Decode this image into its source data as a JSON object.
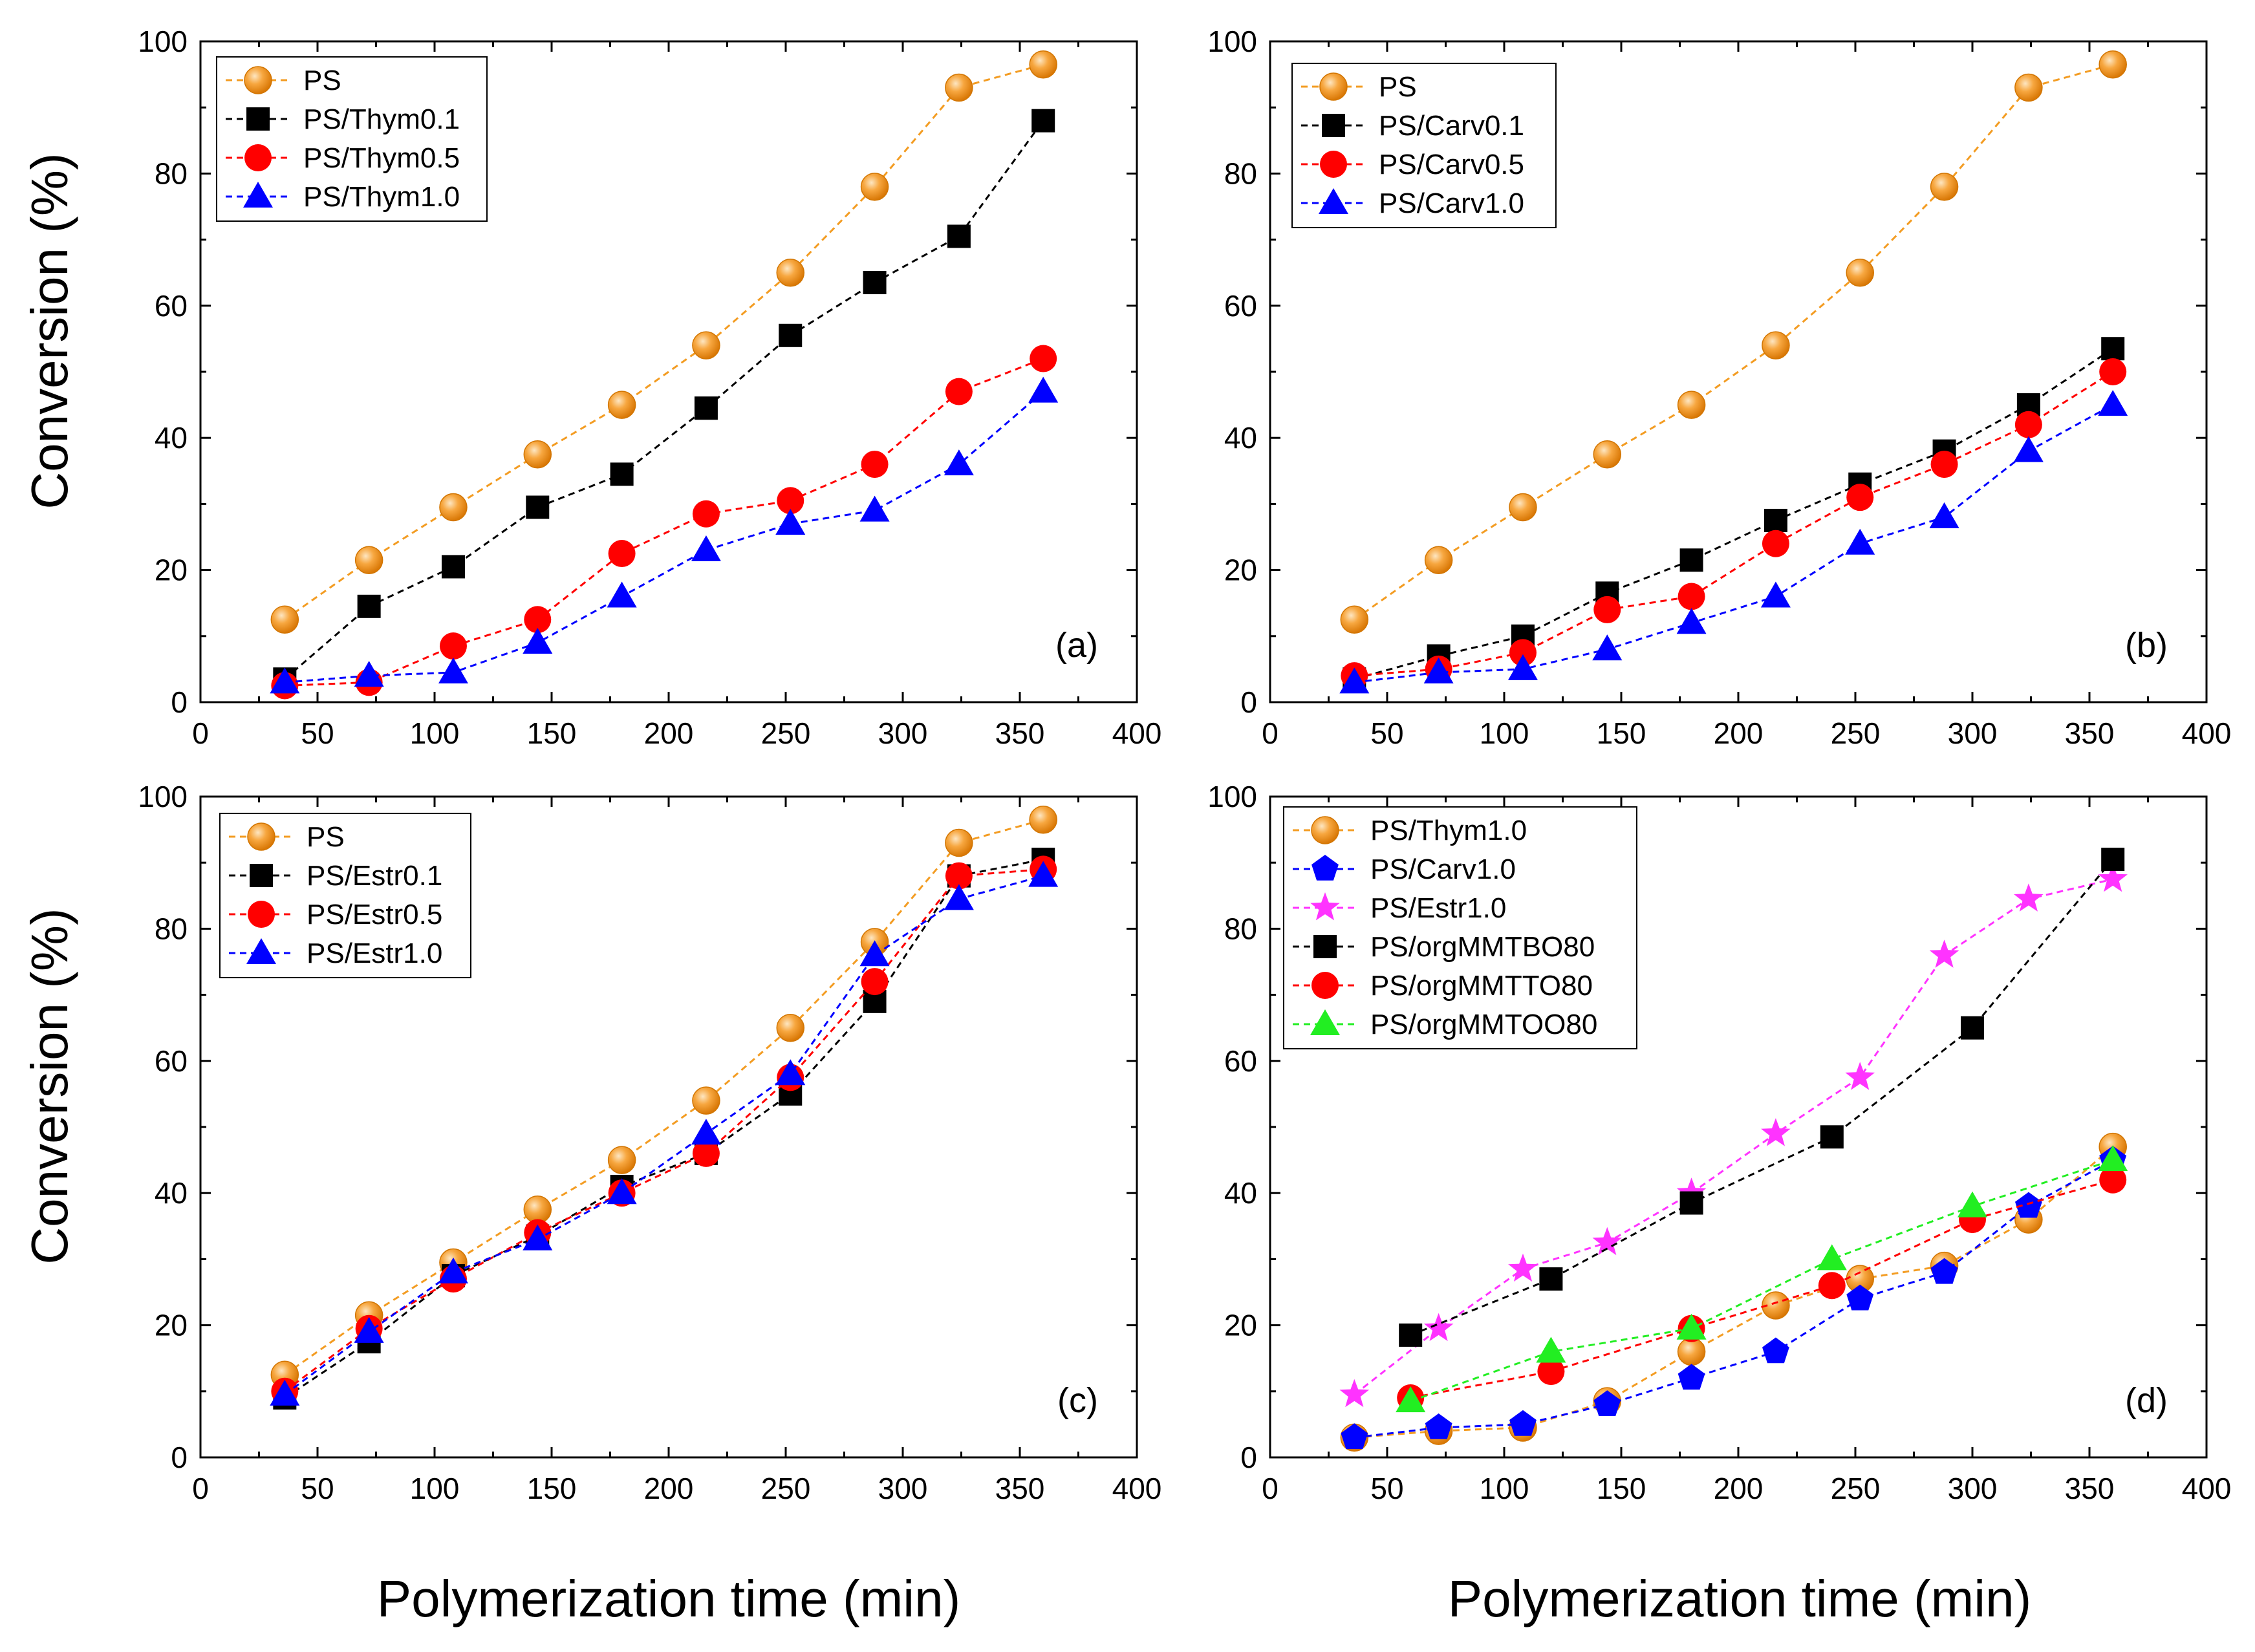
{
  "figure": {
    "x_axis_label": "Polymerization time (min)",
    "y_axis_label": "Conversion (%)"
  },
  "colors": {
    "orange": "#f39c22",
    "black": "#000000",
    "red": "#ff0000",
    "blue": "#0000ff",
    "magenta": "#ff33ff",
    "green": "#22ee22"
  },
  "chart_data": [
    {
      "type": "line",
      "panel": "(a)",
      "xlabel": "Polymerization time (min)",
      "ylabel": "Conversion (%)",
      "xlim": [
        0,
        400
      ],
      "ylim": [
        0,
        100
      ],
      "xticks": [
        "0",
        "50",
        "100",
        "150",
        "200",
        "250",
        "300",
        "350",
        "400"
      ],
      "yticks": [
        "0",
        "20",
        "40",
        "60",
        "80",
        "100"
      ],
      "legend_position": "top-left",
      "series": [
        {
          "name": "PS",
          "color": "#f39c22",
          "marker": "circle-shaded",
          "x": [
            36,
            72,
            108,
            144,
            180,
            216,
            252,
            288,
            324,
            360
          ],
          "y": [
            12.5,
            21.5,
            29.5,
            37.5,
            45,
            54,
            65,
            78,
            93,
            96.5
          ]
        },
        {
          "name": "PS/Thym0.1",
          "color": "#000000",
          "marker": "square",
          "x": [
            36,
            72,
            108,
            144,
            180,
            216,
            252,
            288,
            324,
            360
          ],
          "y": [
            3.5,
            14.5,
            20.5,
            29.5,
            34.5,
            44.5,
            55.5,
            63.5,
            70.5,
            88
          ]
        },
        {
          "name": "PS/Thym0.5",
          "color": "#ff0000",
          "marker": "circle",
          "x": [
            36,
            72,
            108,
            144,
            180,
            216,
            252,
            288,
            324,
            360
          ],
          "y": [
            2.5,
            3,
            8.5,
            12.5,
            22.5,
            28.5,
            30.5,
            36,
            47,
            52
          ]
        },
        {
          "name": "PS/Thym1.0",
          "color": "#0000ff",
          "marker": "triangle",
          "x": [
            36,
            72,
            108,
            144,
            180,
            216,
            252,
            288,
            324,
            360
          ],
          "y": [
            3,
            4,
            4.5,
            9,
            16,
            23,
            27,
            29,
            36,
            47
          ]
        }
      ]
    },
    {
      "type": "line",
      "panel": "(b)",
      "xlabel": "Polymerization time (min)",
      "ylabel": "Conversion (%)",
      "xlim": [
        0,
        400
      ],
      "ylim": [
        0,
        100
      ],
      "xticks": [
        "0",
        "50",
        "100",
        "150",
        "200",
        "250",
        "300",
        "350",
        "400"
      ],
      "yticks": [
        "0",
        "20",
        "40",
        "60",
        "80",
        "100"
      ],
      "legend_position": "top-left",
      "series": [
        {
          "name": "PS",
          "color": "#f39c22",
          "marker": "circle-shaded",
          "x": [
            36,
            72,
            108,
            144,
            180,
            216,
            252,
            288,
            324,
            360
          ],
          "y": [
            12.5,
            21.5,
            29.5,
            37.5,
            45,
            54,
            65,
            78,
            93,
            96.5
          ]
        },
        {
          "name": "PS/Carv0.1",
          "color": "#000000",
          "marker": "square",
          "x": [
            36,
            72,
            108,
            144,
            180,
            216,
            252,
            288,
            324,
            360
          ],
          "y": [
            3.5,
            7,
            10,
            16.5,
            21.5,
            27.5,
            33,
            38,
            45,
            53.5
          ]
        },
        {
          "name": "PS/Carv0.5",
          "color": "#ff0000",
          "marker": "circle",
          "x": [
            36,
            72,
            108,
            144,
            180,
            216,
            252,
            288,
            324,
            360
          ],
          "y": [
            4,
            5,
            7.5,
            14,
            16,
            24,
            31,
            36,
            42,
            50
          ]
        },
        {
          "name": "PS/Carv1.0",
          "color": "#0000ff",
          "marker": "triangle",
          "x": [
            36,
            72,
            108,
            144,
            180,
            216,
            252,
            288,
            324,
            360
          ],
          "y": [
            3,
            4.5,
            5,
            8,
            12,
            16,
            24,
            28,
            38,
            45
          ]
        }
      ]
    },
    {
      "type": "line",
      "panel": "(c)",
      "xlabel": "Polymerization time (min)",
      "ylabel": "Conversion (%)",
      "xlim": [
        0,
        400
      ],
      "ylim": [
        0,
        100
      ],
      "xticks": [
        "0",
        "50",
        "100",
        "150",
        "200",
        "250",
        "300",
        "350",
        "400"
      ],
      "yticks": [
        "0",
        "20",
        "40",
        "60",
        "80",
        "100"
      ],
      "legend_position": "top-left",
      "series": [
        {
          "name": "PS",
          "color": "#f39c22",
          "marker": "circle-shaded",
          "x": [
            36,
            72,
            108,
            144,
            180,
            216,
            252,
            288,
            324,
            360
          ],
          "y": [
            12.5,
            21.5,
            29.5,
            37.5,
            45,
            54,
            65,
            78,
            93,
            96.5
          ]
        },
        {
          "name": "PS/Estr0.1",
          "color": "#000000",
          "marker": "square",
          "x": [
            36,
            72,
            108,
            144,
            180,
            216,
            252,
            288,
            324,
            360
          ],
          "y": [
            9,
            17.5,
            27.5,
            33.5,
            41,
            46,
            55,
            69,
            88,
            90.5
          ]
        },
        {
          "name": "PS/Estr0.5",
          "color": "#ff0000",
          "marker": "circle",
          "x": [
            36,
            72,
            108,
            144,
            180,
            216,
            252,
            288,
            324,
            360
          ],
          "y": [
            10,
            19.5,
            27,
            34,
            40,
            46,
            57.5,
            72,
            88,
            89
          ]
        },
        {
          "name": "PS/Estr1.0",
          "color": "#0000ff",
          "marker": "triangle",
          "x": [
            36,
            72,
            108,
            144,
            180,
            216,
            252,
            288,
            324,
            360
          ],
          "y": [
            9.5,
            19,
            28,
            33,
            40,
            49,
            58,
            76,
            84.5,
            88
          ]
        }
      ]
    },
    {
      "type": "line",
      "panel": "(d)",
      "xlabel": "Polymerization time (min)",
      "ylabel": "Conversion (%)",
      "xlim": [
        0,
        400
      ],
      "ylim": [
        0,
        100
      ],
      "xticks": [
        "0",
        "50",
        "100",
        "150",
        "200",
        "250",
        "300",
        "350",
        "400"
      ],
      "yticks": [
        "0",
        "20",
        "40",
        "60",
        "80",
        "100"
      ],
      "legend_position": "top-left",
      "series": [
        {
          "name": "PS/Thym1.0",
          "color": "#f39c22",
          "marker": "circle-shaded",
          "x": [
            36,
            72,
            108,
            144,
            180,
            216,
            252,
            288,
            324,
            360
          ],
          "y": [
            3,
            4,
            4.5,
            8.5,
            16,
            23,
            27,
            29,
            36,
            47
          ]
        },
        {
          "name": "PS/Carv1.0",
          "color": "#0000ff",
          "marker": "pentagon",
          "x": [
            36,
            72,
            108,
            144,
            180,
            216,
            252,
            288,
            324,
            360
          ],
          "y": [
            3,
            4.5,
            5,
            8,
            12,
            16,
            24,
            28,
            38,
            45
          ]
        },
        {
          "name": "PS/Estr1.0",
          "color": "#ff33ff",
          "marker": "star",
          "x": [
            36,
            72,
            108,
            144,
            180,
            216,
            252,
            288,
            324,
            360
          ],
          "y": [
            9.5,
            19.5,
            28.5,
            32.5,
            40,
            49,
            57.5,
            76,
            84.5,
            87.5
          ]
        },
        {
          "name": "PS/orgMMTBO80",
          "color": "#000000",
          "marker": "square",
          "x": [
            60,
            120,
            180,
            240,
            300,
            360
          ],
          "y": [
            18.5,
            27,
            38.5,
            48.5,
            65,
            90.5
          ]
        },
        {
          "name": "PS/orgMMTTO80",
          "color": "#ff0000",
          "marker": "circle",
          "x": [
            60,
            120,
            180,
            240,
            300,
            360
          ],
          "y": [
            9,
            13,
            19.5,
            26,
            36,
            42
          ]
        },
        {
          "name": "PS/orgMMTOO80",
          "color": "#22ee22",
          "marker": "triangle",
          "x": [
            60,
            120,
            180,
            240,
            300,
            360
          ],
          "y": [
            8.5,
            16,
            19.5,
            30,
            38,
            45
          ]
        }
      ]
    }
  ]
}
